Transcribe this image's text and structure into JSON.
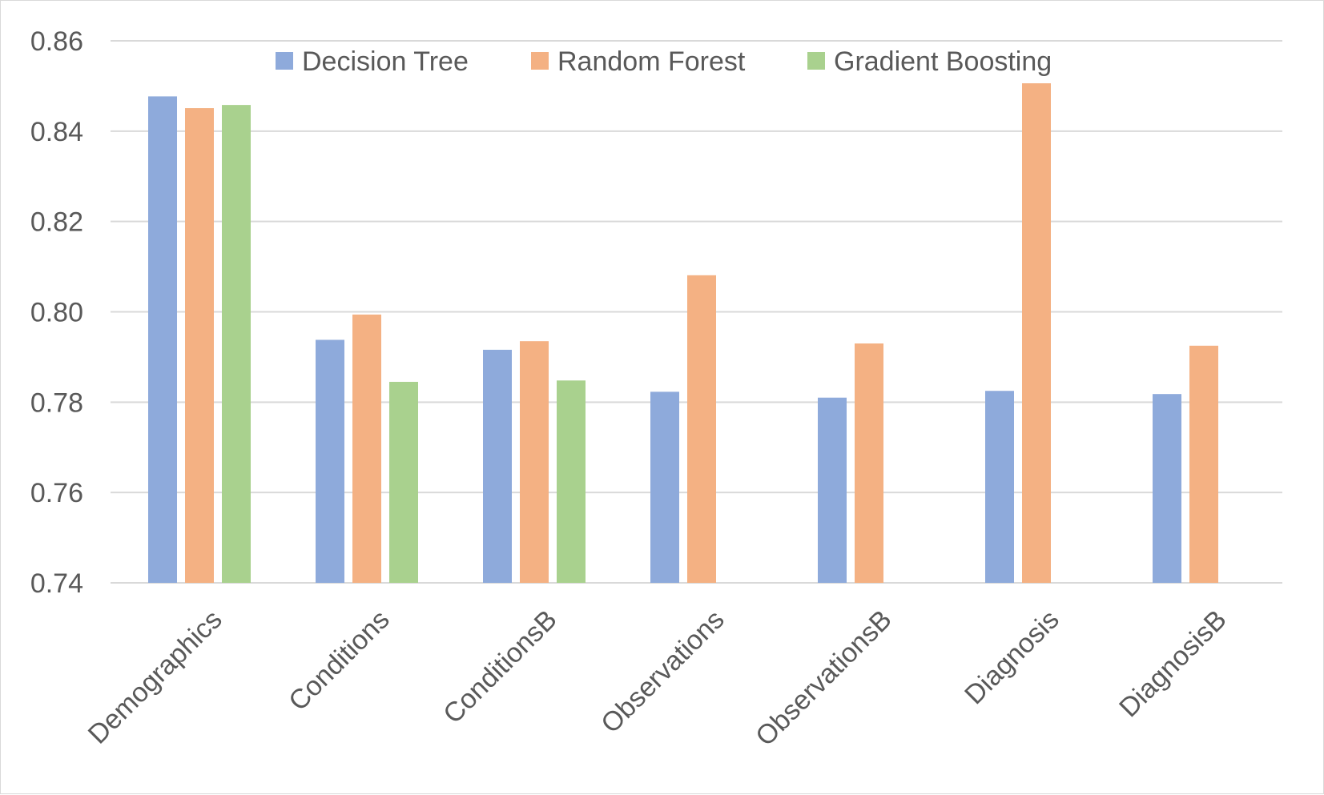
{
  "chart_data": {
    "type": "bar",
    "title": "",
    "xlabel": "",
    "ylabel": "",
    "categories": [
      "Demographics",
      "Conditions",
      "ConditionsB",
      "Observations",
      "ObservationsB",
      "Diagnosis",
      "DiagnosisB"
    ],
    "series": [
      {
        "name": "Decision Tree",
        "color": "#8eaadb",
        "values": [
          0.8477,
          0.7938,
          0.7916,
          0.7823,
          0.781,
          0.7825,
          0.7818
        ]
      },
      {
        "name": "Random Forest",
        "color": "#f4b183",
        "values": [
          0.8451,
          0.7994,
          0.7935,
          0.8081,
          0.793,
          0.8506,
          0.7925
        ]
      },
      {
        "name": "Gradient Boosting",
        "color": "#a9d18e",
        "values": [
          0.8458,
          0.7845,
          0.7848,
          null,
          null,
          null,
          null
        ]
      }
    ],
    "ylim": [
      0.74,
      0.86
    ],
    "yticks": [
      "0.74",
      "0.76",
      "0.78",
      "0.80",
      "0.82",
      "0.84",
      "0.86"
    ],
    "grid": true,
    "legend_position": "top-center"
  }
}
